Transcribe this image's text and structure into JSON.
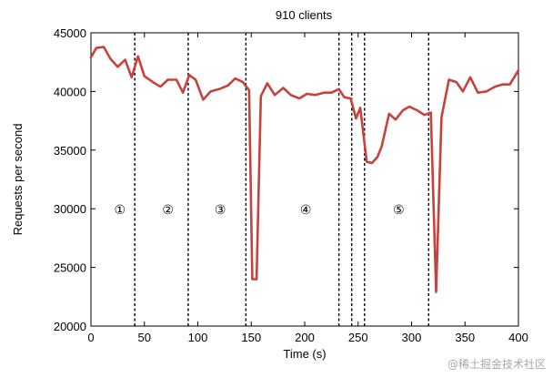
{
  "chart_data": {
    "type": "line",
    "title": "910 clients",
    "xlabel": "Time (s)",
    "ylabel": "Requests per second",
    "xlim": [
      0,
      400
    ],
    "ylim": [
      20000,
      45000
    ],
    "x_ticks": [
      0,
      50,
      100,
      150,
      200,
      250,
      300,
      350,
      400
    ],
    "y_ticks": [
      20000,
      25000,
      30000,
      35000,
      40000,
      45000
    ],
    "line_color": "#c8423c",
    "series": [
      {
        "x": [
          0,
          5,
          12,
          18,
          25,
          32,
          38,
          44,
          50,
          58,
          65,
          72,
          80,
          86,
          92,
          98,
          105,
          112,
          120,
          128,
          135,
          142,
          148,
          151,
          155,
          159,
          165,
          172,
          180,
          187,
          195,
          202,
          210,
          218,
          225,
          232,
          237,
          243,
          248,
          252,
          258,
          263,
          268,
          272,
          279,
          285,
          292,
          298,
          305,
          312,
          318,
          323,
          328,
          335,
          342,
          348,
          355,
          362,
          370,
          378,
          385,
          392,
          400
        ],
        "y": [
          42900,
          43700,
          43800,
          42800,
          42100,
          42700,
          41200,
          43000,
          41300,
          40800,
          40400,
          41000,
          41000,
          39900,
          41400,
          41000,
          39300,
          40000,
          40200,
          40500,
          41100,
          40800,
          40100,
          24000,
          24000,
          39600,
          40700,
          39700,
          40300,
          39700,
          39400,
          39800,
          39700,
          39900,
          39900,
          40200,
          39500,
          39400,
          37700,
          38600,
          34000,
          33900,
          34400,
          35300,
          38100,
          37600,
          38400,
          38700,
          38400,
          38000,
          38200,
          22900,
          37800,
          41000,
          40800,
          40000,
          41200,
          39900,
          40000,
          40400,
          40600,
          40600,
          41800
        ]
      }
    ],
    "phase_boundaries": [
      41,
      91,
      145,
      232,
      244,
      256,
      316
    ],
    "phase_labels": [
      {
        "text": "①",
        "x": 27
      },
      {
        "text": "②",
        "x": 72
      },
      {
        "text": "③",
        "x": 121
      },
      {
        "text": "④",
        "x": 201
      },
      {
        "text": "⑤",
        "x": 288
      }
    ],
    "phase_label_y": 30000,
    "grid": false
  },
  "watermark": "@稀土掘金技术社区"
}
